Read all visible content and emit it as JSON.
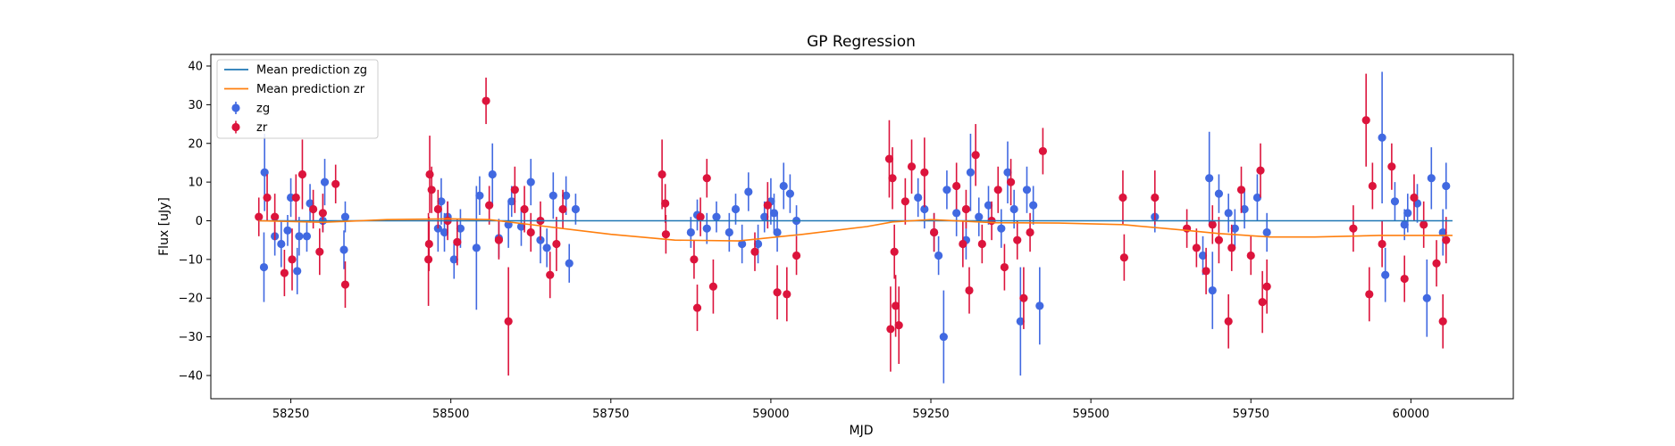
{
  "chart_data": {
    "type": "scatter",
    "title": "GP Regression",
    "xlabel": "MJD",
    "ylabel": "Flux [uJy]",
    "xlim": [
      58125,
      60160
    ],
    "ylim": [
      -46,
      43
    ],
    "xticks": [
      58250,
      58500,
      58750,
      59000,
      59250,
      59500,
      59750,
      60000
    ],
    "yticks": [
      -40,
      -30,
      -20,
      -10,
      0,
      10,
      20,
      30,
      40
    ],
    "grid": false,
    "legend_position": "top-left",
    "colors": {
      "zg_points": "#4169e1",
      "zr_points": "#dc143c",
      "zg_mean": "#1f77b4",
      "zr_mean": "#ff7f0e"
    },
    "legend": [
      {
        "label": "Mean prediction zg",
        "kind": "line",
        "color": "#1f77b4"
      },
      {
        "label": "Mean prediction zr",
        "kind": "line",
        "color": "#ff7f0e"
      },
      {
        "label": "zg",
        "kind": "errorpoint",
        "color": "#4169e1"
      },
      {
        "label": "zr",
        "kind": "errorpoint",
        "color": "#dc143c"
      }
    ],
    "lines": [
      {
        "name": "Mean prediction zg",
        "color": "#1f77b4",
        "points": [
          [
            58200,
            0
          ],
          [
            60065,
            0
          ]
        ]
      },
      {
        "name": "Mean prediction zr",
        "color": "#ff7f0e",
        "points": [
          [
            58200,
            0
          ],
          [
            58300,
            -0.4
          ],
          [
            58400,
            0.3
          ],
          [
            58500,
            0.5
          ],
          [
            58560,
            0.3
          ],
          [
            58650,
            -1.5
          ],
          [
            58750,
            -3.5
          ],
          [
            58850,
            -5
          ],
          [
            58950,
            -5.2
          ],
          [
            59050,
            -3.5
          ],
          [
            59150,
            -1.5
          ],
          [
            59190,
            -0.3
          ],
          [
            59250,
            0.3
          ],
          [
            59350,
            -0.5
          ],
          [
            59450,
            -0.6
          ],
          [
            59550,
            -1
          ],
          [
            59650,
            -2.5
          ],
          [
            59700,
            -3.3
          ],
          [
            59780,
            -4.2
          ],
          [
            59850,
            -4.2
          ],
          [
            59950,
            -3.8
          ],
          [
            60065,
            -3.8
          ]
        ]
      }
    ],
    "series": [
      {
        "name": "zg",
        "color": "#4169e1",
        "points": [
          [
            58208,
            -12,
            9
          ],
          [
            58209,
            12.5,
            10
          ],
          [
            58225,
            -4,
            5
          ],
          [
            58235,
            -6,
            6
          ],
          [
            58245,
            -2.5,
            4
          ],
          [
            58250,
            6,
            5
          ],
          [
            58260,
            -13,
            6
          ],
          [
            58263,
            -4,
            5
          ],
          [
            58275,
            -4,
            4
          ],
          [
            58280,
            4.5,
            5
          ],
          [
            58300,
            0,
            3
          ],
          [
            58303,
            10,
            6
          ],
          [
            58333,
            -7.5,
            5
          ],
          [
            58335,
            1,
            4
          ],
          [
            58480,
            -2,
            6
          ],
          [
            58485,
            5,
            6
          ],
          [
            58490,
            -3,
            5
          ],
          [
            58495,
            1,
            4
          ],
          [
            58505,
            -10,
            5
          ],
          [
            58515,
            -2,
            5
          ],
          [
            58540,
            -7,
            16
          ],
          [
            58545,
            6.5,
            5
          ],
          [
            58565,
            12,
            8
          ],
          [
            58575,
            -4.5,
            5
          ],
          [
            58590,
            -1,
            6
          ],
          [
            58595,
            5,
            4
          ],
          [
            58610,
            -1.5,
            5
          ],
          [
            58625,
            10,
            6
          ],
          [
            58640,
            -5,
            6
          ],
          [
            58650,
            -7,
            5
          ],
          [
            58660,
            6.5,
            6
          ],
          [
            58680,
            6.5,
            5
          ],
          [
            58685,
            -11,
            5
          ],
          [
            58695,
            3,
            4
          ],
          [
            58875,
            -3,
            4
          ],
          [
            58885,
            1.5,
            4
          ],
          [
            58900,
            -2,
            4
          ],
          [
            58915,
            1,
            4
          ],
          [
            58935,
            -3,
            5
          ],
          [
            58945,
            3,
            4
          ],
          [
            58955,
            -6,
            5
          ],
          [
            58965,
            7.5,
            5
          ],
          [
            58980,
            -6,
            5
          ],
          [
            58990,
            1,
            4
          ],
          [
            59000,
            5,
            6
          ],
          [
            59005,
            2,
            5
          ],
          [
            59010,
            -3,
            5
          ],
          [
            59020,
            9,
            6
          ],
          [
            59030,
            7,
            5
          ],
          [
            59040,
            0,
            4
          ],
          [
            59230,
            6,
            5
          ],
          [
            59240,
            3,
            5
          ],
          [
            59255,
            -3,
            5
          ],
          [
            59262,
            -9,
            5
          ],
          [
            59270,
            -30,
            12
          ],
          [
            59275,
            8,
            5
          ],
          [
            59290,
            2,
            6
          ],
          [
            59305,
            -5,
            5
          ],
          [
            59312,
            12.5,
            10
          ],
          [
            59325,
            1,
            5
          ],
          [
            59340,
            4,
            5
          ],
          [
            59360,
            -2,
            5
          ],
          [
            59370,
            12.5,
            8
          ],
          [
            59380,
            3,
            5
          ],
          [
            59390,
            -26,
            14
          ],
          [
            59400,
            8,
            6
          ],
          [
            59410,
            4,
            5
          ],
          [
            59420,
            -22,
            10
          ],
          [
            59600,
            1,
            4
          ],
          [
            59675,
            -9,
            5
          ],
          [
            59685,
            11,
            12
          ],
          [
            59690,
            -18,
            10
          ],
          [
            59700,
            7,
            5
          ],
          [
            59715,
            2,
            5
          ],
          [
            59725,
            -2,
            5
          ],
          [
            59740,
            3,
            5
          ],
          [
            59760,
            6,
            6
          ],
          [
            59775,
            -3,
            5
          ],
          [
            59955,
            21.5,
            17
          ],
          [
            59960,
            -14,
            7
          ],
          [
            59975,
            5,
            5
          ],
          [
            59990,
            -1,
            4
          ],
          [
            59995,
            2,
            5
          ],
          [
            60010,
            4.5,
            5
          ],
          [
            60025,
            -20,
            10
          ],
          [
            60032,
            11,
            8
          ],
          [
            60050,
            -3,
            6
          ],
          [
            60055,
            9,
            6
          ]
        ]
      },
      {
        "name": "zr",
        "color": "#dc143c",
        "points": [
          [
            58200,
            1,
            5
          ],
          [
            58213,
            6,
            6
          ],
          [
            58225,
            1,
            6
          ],
          [
            58240,
            -13.5,
            6
          ],
          [
            58252,
            -10,
            8
          ],
          [
            58258,
            6,
            6
          ],
          [
            58268,
            12,
            9
          ],
          [
            58285,
            3,
            5
          ],
          [
            58295,
            -8,
            6
          ],
          [
            58300,
            2,
            5
          ],
          [
            58320,
            9.5,
            5
          ],
          [
            58335,
            -16.5,
            6
          ],
          [
            58465,
            -10,
            12
          ],
          [
            58466,
            -6,
            7
          ],
          [
            58467,
            12,
            10
          ],
          [
            58470,
            8,
            6
          ],
          [
            58480,
            3,
            5
          ],
          [
            58495,
            0,
            5
          ],
          [
            58510,
            -5.5,
            6
          ],
          [
            58555,
            31,
            6
          ],
          [
            58560,
            4,
            5
          ],
          [
            58575,
            -5,
            5
          ],
          [
            58590,
            -26,
            14
          ],
          [
            58600,
            8,
            6
          ],
          [
            58615,
            3,
            6
          ],
          [
            58625,
            -3,
            5
          ],
          [
            58640,
            0,
            5
          ],
          [
            58655,
            -14,
            6
          ],
          [
            58665,
            -6,
            7
          ],
          [
            58675,
            3,
            5
          ],
          [
            58830,
            12,
            9
          ],
          [
            58835,
            4.5,
            5
          ],
          [
            58836,
            -3.5,
            5
          ],
          [
            58880,
            -10,
            5
          ],
          [
            58885,
            -22.5,
            6
          ],
          [
            58890,
            1,
            5
          ],
          [
            58900,
            11,
            5
          ],
          [
            58910,
            -17,
            7
          ],
          [
            58975,
            -8,
            5
          ],
          [
            58995,
            4,
            6
          ],
          [
            59010,
            -18.5,
            7
          ],
          [
            59025,
            -19,
            7
          ],
          [
            59040,
            -9,
            5
          ],
          [
            59185,
            16,
            10
          ],
          [
            59187,
            -28,
            11
          ],
          [
            59190,
            11,
            8
          ],
          [
            59193,
            -8,
            7
          ],
          [
            59195,
            -22,
            8
          ],
          [
            59200,
            -27,
            10
          ],
          [
            59210,
            5,
            6
          ],
          [
            59220,
            14,
            7
          ],
          [
            59240,
            12.5,
            9
          ],
          [
            59255,
            -3,
            5
          ],
          [
            59290,
            9,
            6
          ],
          [
            59300,
            -6,
            6
          ],
          [
            59305,
            3,
            5
          ],
          [
            59310,
            -18,
            6
          ],
          [
            59320,
            17,
            8
          ],
          [
            59330,
            -6,
            5
          ],
          [
            59345,
            0,
            5
          ],
          [
            59355,
            8,
            6
          ],
          [
            59365,
            -12,
            6
          ],
          [
            59375,
            10,
            6
          ],
          [
            59385,
            -5,
            5
          ],
          [
            59395,
            -20,
            8
          ],
          [
            59405,
            -3,
            5
          ],
          [
            59425,
            18,
            6
          ],
          [
            59550,
            6,
            7
          ],
          [
            59552,
            -9.5,
            6
          ],
          [
            59600,
            6,
            7
          ],
          [
            59650,
            -2,
            5
          ],
          [
            59665,
            -7,
            5
          ],
          [
            59680,
            -13,
            6
          ],
          [
            59690,
            -1,
            5
          ],
          [
            59700,
            -5,
            6
          ],
          [
            59715,
            -26,
            7
          ],
          [
            59720,
            -7,
            6
          ],
          [
            59735,
            8,
            6
          ],
          [
            59750,
            -9,
            5
          ],
          [
            59765,
            13,
            7
          ],
          [
            59768,
            -21,
            8
          ],
          [
            59775,
            -17,
            7
          ],
          [
            59910,
            -2,
            6
          ],
          [
            59930,
            26,
            12
          ],
          [
            59935,
            -19,
            7
          ],
          [
            59940,
            9,
            6
          ],
          [
            59955,
            -6,
            6
          ],
          [
            59970,
            14,
            6
          ],
          [
            59990,
            -15,
            6
          ],
          [
            60005,
            6,
            6
          ],
          [
            60020,
            -1,
            6
          ],
          [
            60040,
            -11,
            6
          ],
          [
            60050,
            -26,
            7
          ],
          [
            60055,
            -5,
            6
          ]
        ]
      }
    ]
  }
}
